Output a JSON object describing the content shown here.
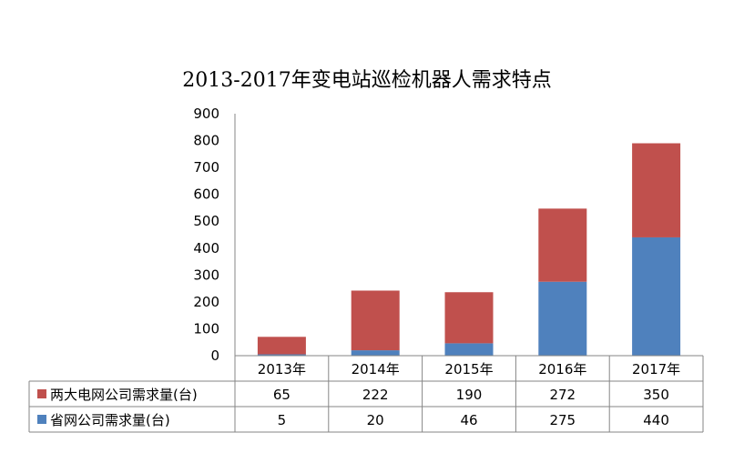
{
  "chart_data": {
    "type": "bar",
    "stacked": true,
    "title": "2013-2017年变电站巡检机器人需求特点",
    "categories": [
      "2013年",
      "2014年",
      "2015年",
      "2016年",
      "2017年"
    ],
    "ylim": [
      0,
      900
    ],
    "yticks": [
      0,
      100,
      200,
      300,
      400,
      500,
      600,
      700,
      800,
      900
    ],
    "grid": false,
    "legend_placement": "data table",
    "series": [
      {
        "name": "省网公司需求量(台)",
        "values": [
          5,
          20,
          46,
          275,
          440
        ],
        "color": "#4f81bd"
      },
      {
        "name": "两大电网公司需求量(台)",
        "values": [
          65,
          222,
          190,
          272,
          350
        ],
        "color": "#c0504d"
      }
    ],
    "table_row_order": [
      1,
      0
    ]
  }
}
